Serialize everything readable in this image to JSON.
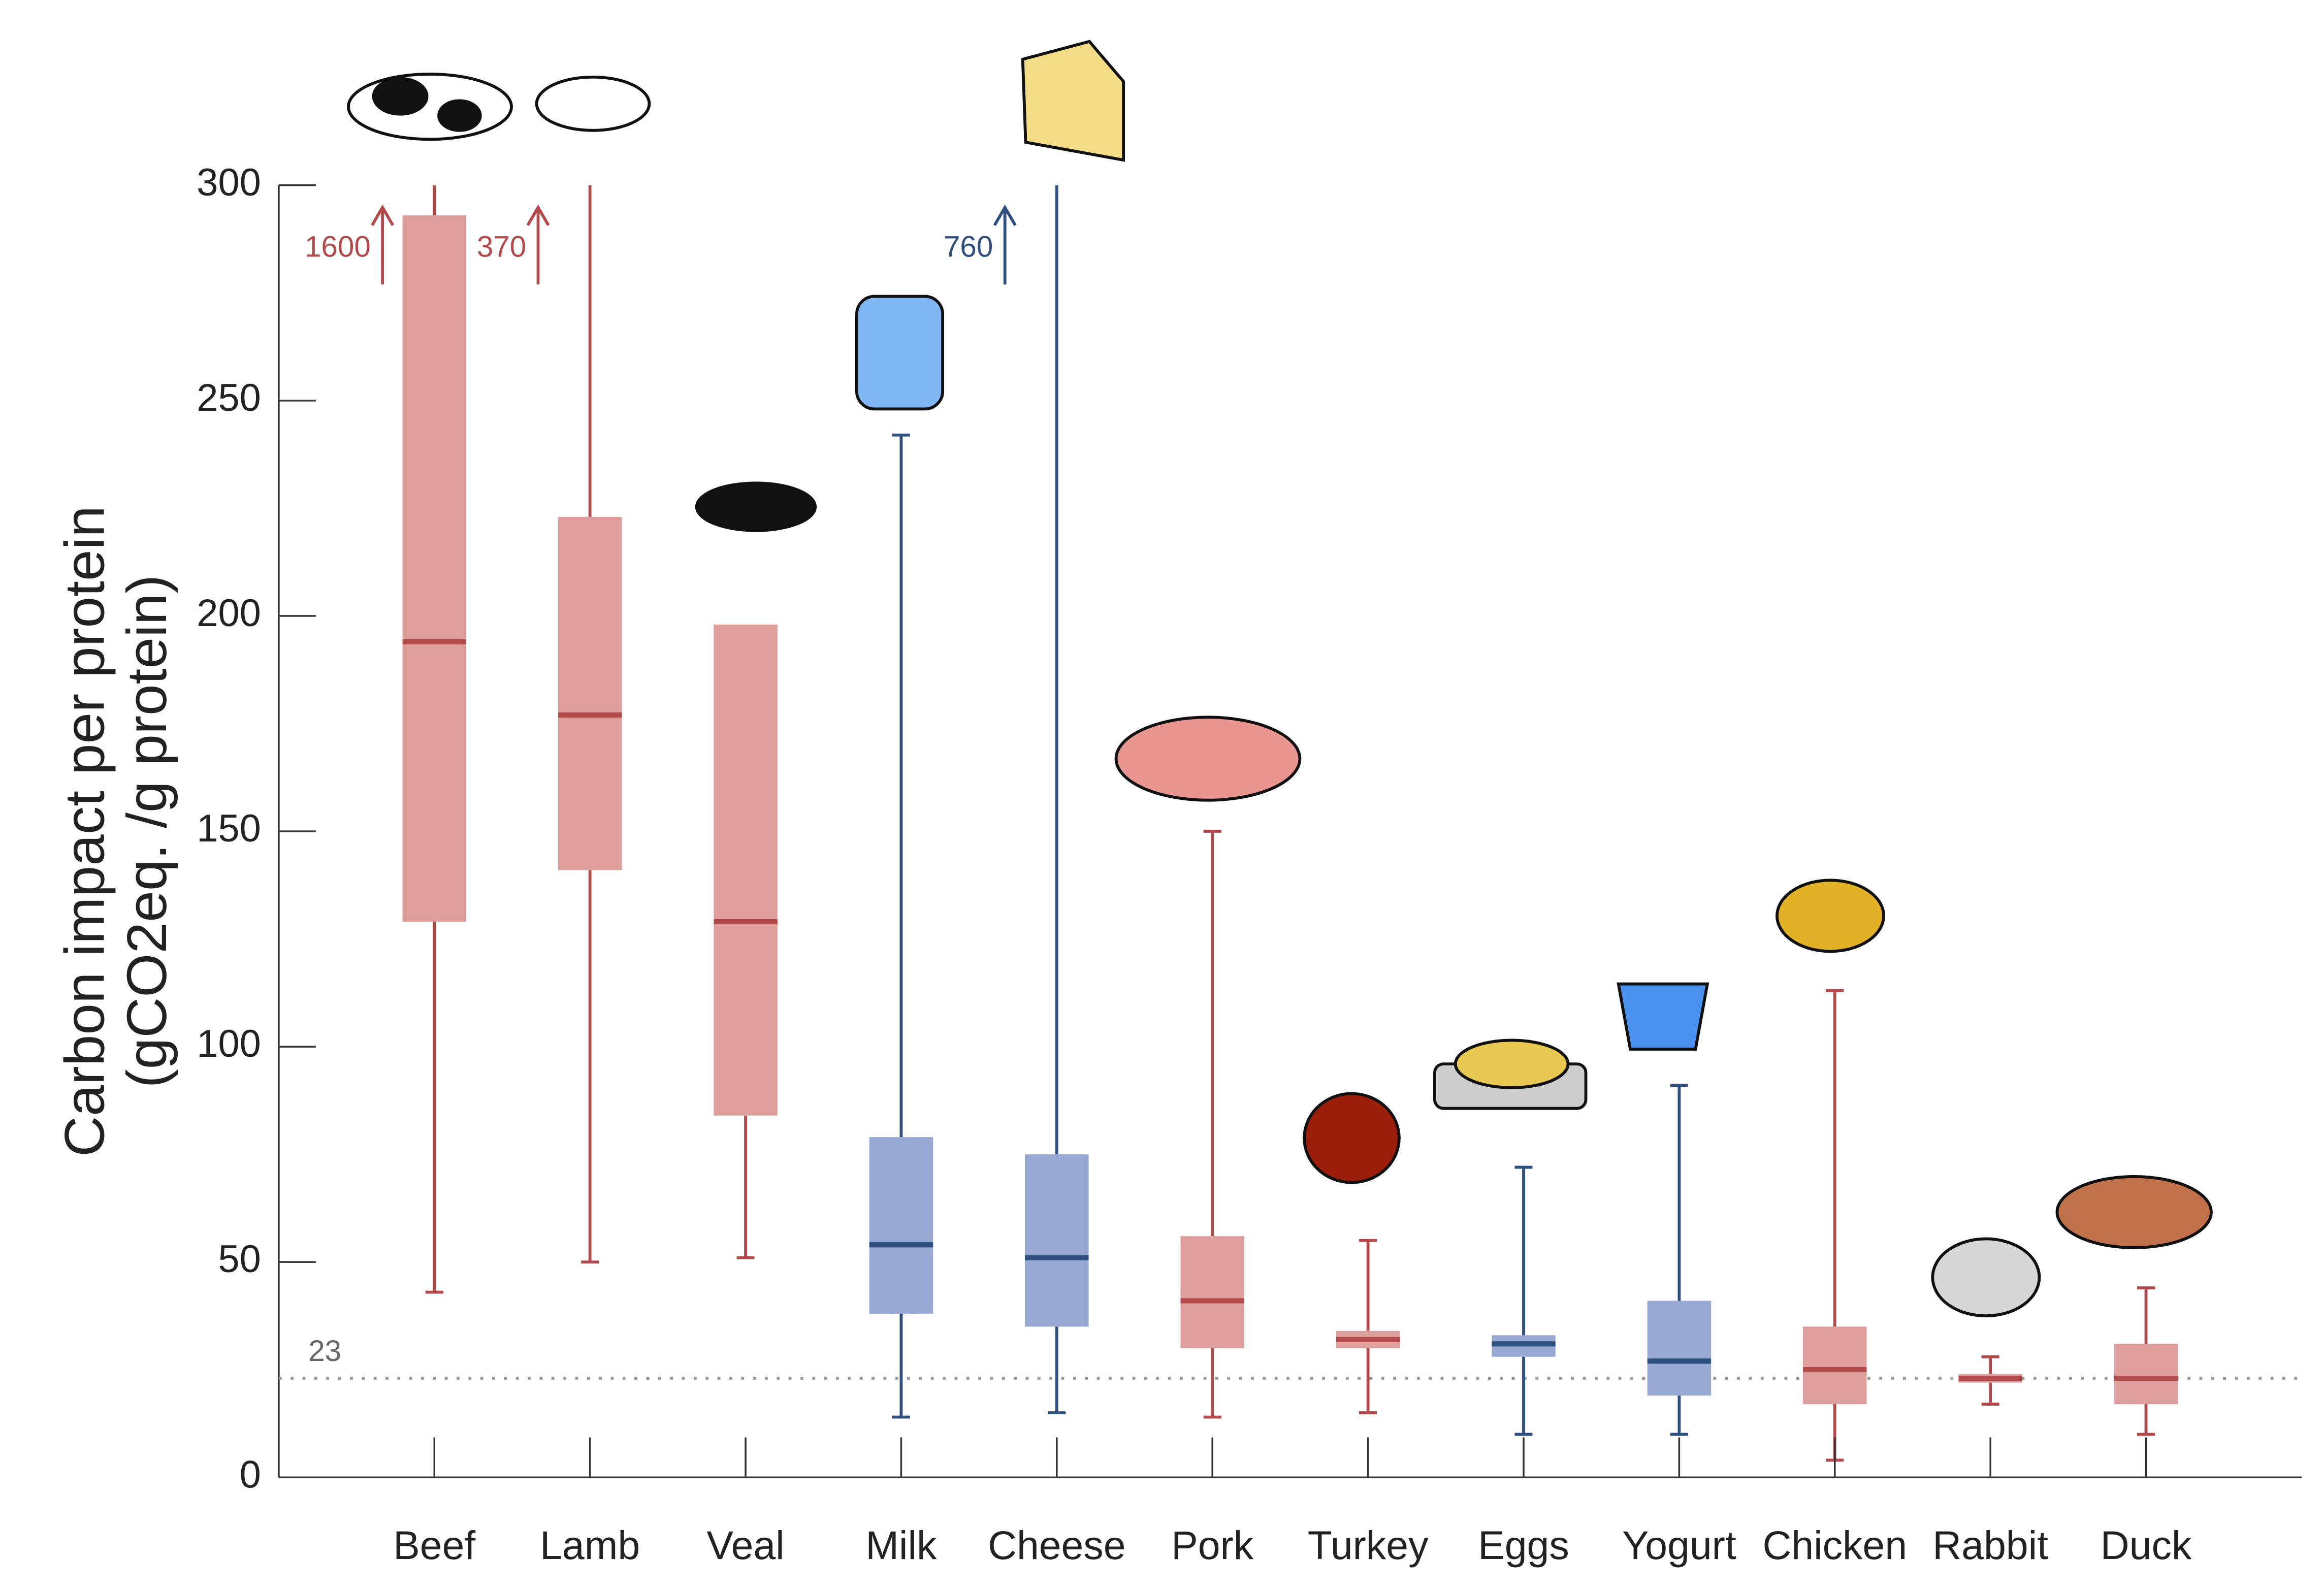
{
  "chart_data": {
    "type": "box",
    "ylabel": [
      "Carbon impact per protein",
      "(gCO2eq. /g protein)"
    ],
    "categories": [
      "Beef",
      "Lamb",
      "Veal",
      "Milk",
      "Cheese",
      "Pork",
      "Turkey",
      "Eggs",
      "Yogurt",
      "Chicken",
      "Rabbit",
      "Duck"
    ],
    "min": [
      43,
      50,
      51,
      14,
      15,
      14,
      15,
      10,
      10,
      4,
      17,
      10
    ],
    "q1": [
      129,
      141,
      84,
      38,
      35,
      30,
      30,
      28,
      19,
      17,
      22,
      17
    ],
    "median": [
      194,
      177,
      129,
      54,
      51,
      41,
      32,
      31,
      27,
      25,
      23,
      23
    ],
    "q3": [
      293,
      223,
      198,
      79,
      75,
      56,
      34,
      33,
      41,
      35,
      24,
      31
    ],
    "max": [
      1600,
      370,
      198,
      242,
      760,
      150,
      55,
      72,
      91,
      113,
      28,
      44
    ],
    "box_colors": [
      "#dd9e9c",
      "#dd9e9c",
      "#dd9e9c",
      "#97a9d3",
      "#97a9d3",
      "#dd9e9c",
      "#dd9e9c",
      "#97a9d3",
      "#97a9d3",
      "#dd9e9c",
      "#dd9e9c",
      "#dd9e9c"
    ],
    "line_colors": [
      "#b24a4c",
      "#b24a4c",
      "#b24a4c",
      "#2f4f7f",
      "#2f4f7f",
      "#b24a4c",
      "#b24a4c",
      "#2f4f7f",
      "#2f4f7f",
      "#b24a4c",
      "#b24a4c",
      "#b24a4c"
    ],
    "reference_line": 23,
    "ylim": [
      0,
      300
    ],
    "yticks": [
      0,
      50,
      100,
      150,
      200,
      250,
      300
    ]
  }
}
